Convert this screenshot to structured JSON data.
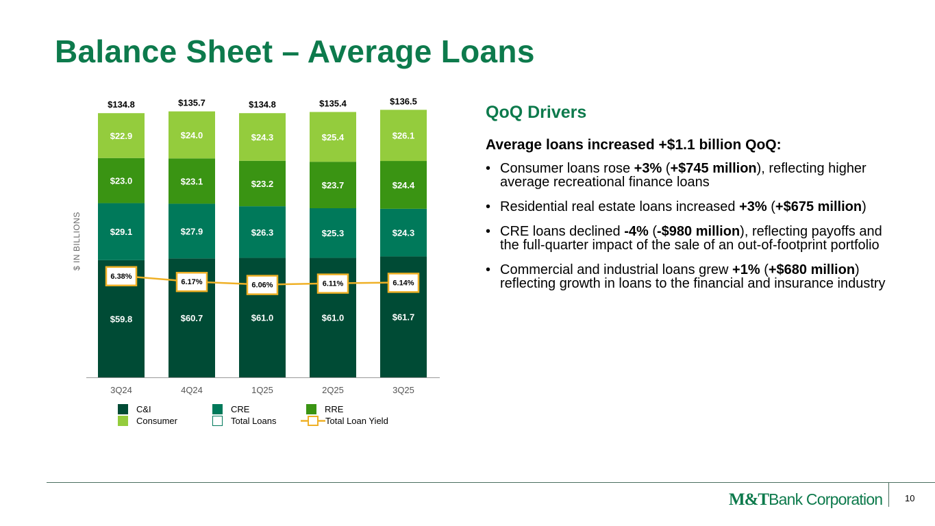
{
  "title": "Balance Sheet – Average Loans",
  "colors": {
    "title_green": "#0d7a4c",
    "ci": "#004b35",
    "cre": "#00795a",
    "rre": "#3a9413",
    "consumer": "#94cc3d",
    "yield_line": "#efb026",
    "axis": "#999999"
  },
  "chart_data": {
    "type": "bar",
    "stacked": true,
    "categories": [
      "3Q24",
      "4Q24",
      "1Q25",
      "2Q25",
      "3Q25"
    ],
    "ylabel": "$ IN BILLIONS",
    "ylim": [
      0,
      140
    ],
    "grid": false,
    "legend_position": "bottom",
    "series": [
      {
        "name": "C&I",
        "key": "ci",
        "values": [
          59.8,
          60.7,
          61.0,
          61.0,
          61.7
        ],
        "labels": [
          "$59.8",
          "$60.7",
          "$61.0",
          "$61.0",
          "$61.7"
        ]
      },
      {
        "name": "CRE",
        "key": "cre",
        "values": [
          29.1,
          27.9,
          26.3,
          25.3,
          24.3
        ],
        "labels": [
          "$29.1",
          "$27.9",
          "$26.3",
          "$25.3",
          "$24.3"
        ]
      },
      {
        "name": "RRE",
        "key": "rre",
        "values": [
          23.0,
          23.1,
          23.2,
          23.7,
          24.4
        ],
        "labels": [
          "$23.0",
          "$23.1",
          "$23.2",
          "$23.7",
          "$24.4"
        ]
      },
      {
        "name": "Consumer",
        "key": "consumer",
        "values": [
          22.9,
          24.0,
          24.3,
          25.4,
          26.1
        ],
        "labels": [
          "$22.9",
          "$24.0",
          "$24.3",
          "$25.4",
          "$26.1"
        ]
      }
    ],
    "totals": {
      "name": "Total Loans",
      "values": [
        134.8,
        135.7,
        134.8,
        135.4,
        136.5
      ],
      "labels": [
        "$134.8",
        "$135.7",
        "$134.8",
        "$135.4",
        "$136.5"
      ]
    },
    "yield": {
      "name": "Total Loan Yield",
      "values": [
        6.38,
        6.17,
        6.06,
        6.11,
        6.14
      ],
      "labels": [
        "6.38%",
        "6.17%",
        "6.06%",
        "6.11%",
        "6.14%"
      ]
    },
    "legend": [
      {
        "label": "C&I",
        "type": "box",
        "key": "ci"
      },
      {
        "label": "CRE",
        "type": "box",
        "key": "cre"
      },
      {
        "label": "RRE",
        "type": "box",
        "key": "rre"
      },
      {
        "label": "Consumer",
        "type": "box",
        "key": "consumer"
      },
      {
        "label": "Total Loans",
        "type": "outline",
        "key": "total"
      },
      {
        "label": "Total Loan Yield",
        "type": "line",
        "key": "yield_line"
      }
    ]
  },
  "drivers": {
    "heading": "QoQ Drivers",
    "subheading": "Average loans increased +$1.1 billion QoQ:",
    "bullets": [
      [
        {
          "t": "Consumer loans rose "
        },
        {
          "t": "+3%",
          "b": true
        },
        {
          "t": " ("
        },
        {
          "t": "+$745 million",
          "b": true
        },
        {
          "t": "), reflecting higher average recreational finance loans"
        }
      ],
      [
        {
          "t": "Residential real estate loans increased "
        },
        {
          "t": "+3%",
          "b": true
        },
        {
          "t": " ("
        },
        {
          "t": "+$675 million",
          "b": true
        },
        {
          "t": ")"
        }
      ],
      [
        {
          "t": "CRE loans declined "
        },
        {
          "t": "-4%",
          "b": true
        },
        {
          "t": " ("
        },
        {
          "t": "-$980 million",
          "b": true
        },
        {
          "t": "), reflecting payoffs and the full-quarter impact of the sale of an out-of-footprint portfolio"
        }
      ],
      [
        {
          "t": "Commercial and industrial loans grew "
        },
        {
          "t": "+1%",
          "b": true
        },
        {
          "t": " ("
        },
        {
          "t": "+$680 million",
          "b": true
        },
        {
          "t": ") reflecting growth in loans to the financial and insurance industry"
        }
      ]
    ]
  },
  "footer": {
    "logo_mt": "M&T",
    "logo_rest": "Bank Corporation",
    "page_number": "10"
  }
}
